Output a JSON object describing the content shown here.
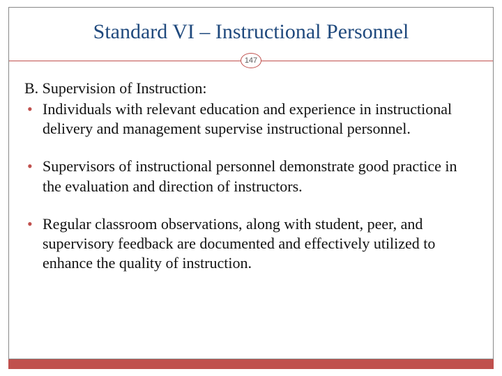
{
  "colors": {
    "title_color": "#1f497d",
    "accent_color": "#c0504d",
    "text_color": "#111111",
    "background": "#ffffff",
    "frame_border": "#888888"
  },
  "typography": {
    "title_fontsize": 30,
    "body_fontsize": 22,
    "badge_fontsize": 11,
    "font_family": "Georgia"
  },
  "title": "Standard VI – Instructional Personnel",
  "page_number": "147",
  "section_label": "B. Supervision of Instruction:",
  "bullets": [
    "Individuals with relevant education and experience in instructional delivery and management supervise instructional personnel.",
    "Supervisors of instructional personnel demonstrate good practice in the evaluation and direction of instructors.",
    "Regular classroom observations, along with student, peer, and supervisory feedback are documented and effectively utilized to enhance the quality of instruction."
  ]
}
